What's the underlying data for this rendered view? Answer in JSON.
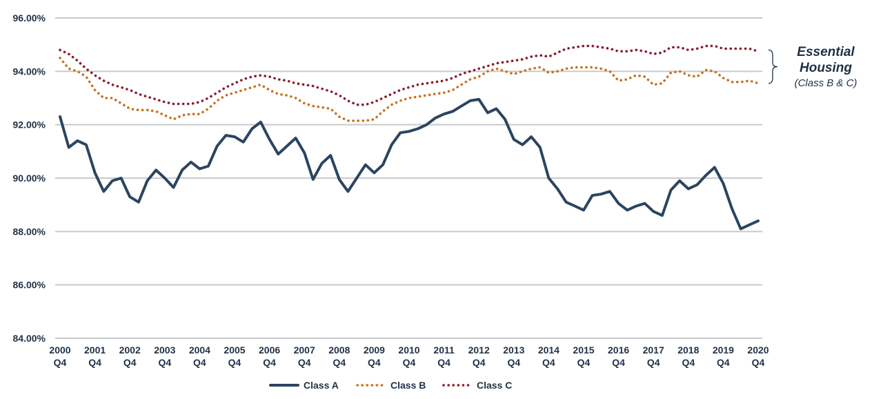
{
  "chart_data": {
    "type": "line",
    "title": "",
    "xlabel": "",
    "ylabel": "",
    "ylim": [
      84,
      96
    ],
    "yticks": [
      "96.00%",
      "94.00%",
      "92.00%",
      "90.00%",
      "88.00%",
      "86.00%",
      "84.00%"
    ],
    "ytick_values": [
      96,
      94,
      92,
      90,
      88,
      86,
      84
    ],
    "xticks": [
      {
        "year": "2000",
        "q": "Q4"
      },
      {
        "year": "2001",
        "q": "Q4"
      },
      {
        "year": "2002",
        "q": "Q4"
      },
      {
        "year": "2003",
        "q": "Q4"
      },
      {
        "year": "2004",
        "q": "Q4"
      },
      {
        "year": "2005",
        "q": "Q4"
      },
      {
        "year": "2006",
        "q": "Q4"
      },
      {
        "year": "2007",
        "q": "Q4"
      },
      {
        "year": "2008",
        "q": "Q4"
      },
      {
        "year": "2009",
        "q": "Q4"
      },
      {
        "year": "2010",
        "q": "Q4"
      },
      {
        "year": "2011",
        "q": "Q4"
      },
      {
        "year": "2012",
        "q": "Q4"
      },
      {
        "year": "2013",
        "q": "Q4"
      },
      {
        "year": "2014",
        "q": "Q4"
      },
      {
        "year": "2015",
        "q": "Q4"
      },
      {
        "year": "2016",
        "q": "Q4"
      },
      {
        "year": "2017",
        "q": "Q4"
      },
      {
        "year": "2018",
        "q": "Q4"
      },
      {
        "year": "2019",
        "q": "Q4"
      },
      {
        "year": "2020",
        "q": "Q4"
      }
    ],
    "xrange": [
      2000,
      2020
    ],
    "grid": true,
    "legend_position": "bottom-center",
    "series": [
      {
        "name": "Class A",
        "style": "solid",
        "color": "#2b4560",
        "x": [
          2000,
          2000.25,
          2000.5,
          2000.75,
          2001,
          2001.25,
          2001.5,
          2001.75,
          2002,
          2002.25,
          2002.5,
          2002.75,
          2003,
          2003.25,
          2003.5,
          2003.75,
          2004,
          2004.25,
          2004.5,
          2004.75,
          2005,
          2005.25,
          2005.5,
          2005.75,
          2006,
          2006.25,
          2006.5,
          2006.75,
          2007,
          2007.25,
          2007.5,
          2007.75,
          2008,
          2008.25,
          2008.5,
          2008.75,
          2009,
          2009.25,
          2009.5,
          2009.75,
          2010,
          2010.25,
          2010.5,
          2010.75,
          2011,
          2011.25,
          2011.5,
          2011.75,
          2012,
          2012.25,
          2012.5,
          2012.75,
          2013,
          2013.25,
          2013.5,
          2013.75,
          2014,
          2014.25,
          2014.5,
          2014.75,
          2015,
          2015.25,
          2015.5,
          2015.75,
          2016,
          2016.25,
          2016.5,
          2016.75,
          2017,
          2017.25,
          2017.5,
          2017.75,
          2018,
          2018.25,
          2018.5,
          2018.75,
          2019,
          2019.25,
          2019.5,
          2019.75,
          2020
        ],
        "values": [
          92.3,
          91.15,
          91.4,
          91.25,
          90.2,
          89.5,
          89.9,
          90.0,
          89.3,
          89.1,
          89.9,
          90.3,
          90.0,
          89.65,
          90.3,
          90.6,
          90.35,
          90.45,
          91.2,
          91.6,
          91.55,
          91.35,
          91.85,
          92.1,
          91.45,
          90.9,
          91.2,
          91.5,
          90.95,
          89.95,
          90.55,
          90.85,
          89.95,
          89.5,
          90.0,
          90.5,
          90.2,
          90.5,
          91.25,
          91.7,
          91.75,
          91.85,
          92.0,
          92.25,
          92.4,
          92.5,
          92.7,
          92.9,
          92.95,
          92.45,
          92.6,
          92.2,
          91.45,
          91.25,
          91.55,
          91.15,
          90.0,
          89.6,
          89.1,
          88.95,
          88.8,
          89.35,
          89.4,
          89.5,
          89.05,
          88.8,
          88.95,
          89.05,
          88.75,
          88.6,
          89.55,
          89.9,
          89.6,
          89.75,
          90.1,
          90.4,
          89.8,
          88.85,
          88.1,
          88.25,
          88.4
        ]
      },
      {
        "name": "Class B",
        "style": "dotted",
        "color": "#c8701d",
        "x": [
          2000,
          2000.25,
          2000.5,
          2000.75,
          2001,
          2001.25,
          2001.5,
          2001.75,
          2002,
          2002.25,
          2002.5,
          2002.75,
          2003,
          2003.25,
          2003.5,
          2003.75,
          2004,
          2004.25,
          2004.5,
          2004.75,
          2005,
          2005.25,
          2005.5,
          2005.75,
          2006,
          2006.25,
          2006.5,
          2006.75,
          2007,
          2007.25,
          2007.5,
          2007.75,
          2008,
          2008.25,
          2008.5,
          2008.75,
          2009,
          2009.25,
          2009.5,
          2009.75,
          2010,
          2010.25,
          2010.5,
          2010.75,
          2011,
          2011.25,
          2011.5,
          2011.75,
          2012,
          2012.25,
          2012.5,
          2012.75,
          2013,
          2013.25,
          2013.5,
          2013.75,
          2014,
          2014.25,
          2014.5,
          2014.75,
          2015,
          2015.25,
          2015.5,
          2015.75,
          2016,
          2016.25,
          2016.5,
          2016.75,
          2017,
          2017.25,
          2017.5,
          2017.75,
          2018,
          2018.25,
          2018.5,
          2018.75,
          2019,
          2019.25,
          2019.5,
          2019.75,
          2020
        ],
        "values": [
          94.5,
          94.1,
          94.0,
          93.8,
          93.3,
          93.0,
          93.0,
          92.8,
          92.6,
          92.55,
          92.55,
          92.5,
          92.35,
          92.2,
          92.35,
          92.4,
          92.4,
          92.6,
          92.9,
          93.1,
          93.2,
          93.3,
          93.4,
          93.5,
          93.3,
          93.15,
          93.1,
          93.0,
          92.8,
          92.7,
          92.65,
          92.6,
          92.3,
          92.15,
          92.15,
          92.15,
          92.2,
          92.5,
          92.75,
          92.9,
          93.0,
          93.05,
          93.1,
          93.15,
          93.2,
          93.3,
          93.5,
          93.7,
          93.8,
          94.0,
          94.1,
          94.0,
          93.9,
          94.0,
          94.1,
          94.15,
          93.95,
          94.0,
          94.1,
          94.15,
          94.15,
          94.15,
          94.1,
          94.0,
          93.65,
          93.7,
          93.85,
          93.8,
          93.5,
          93.55,
          93.95,
          94.0,
          93.85,
          93.8,
          94.05,
          94.0,
          93.75,
          93.6,
          93.6,
          93.65,
          93.55
        ]
      },
      {
        "name": "Class C",
        "style": "dotted",
        "color": "#8b1a2b",
        "x": [
          2000,
          2000.25,
          2000.5,
          2000.75,
          2001,
          2001.25,
          2001.5,
          2001.75,
          2002,
          2002.25,
          2002.5,
          2002.75,
          2003,
          2003.25,
          2003.5,
          2003.75,
          2004,
          2004.25,
          2004.5,
          2004.75,
          2005,
          2005.25,
          2005.5,
          2005.75,
          2006,
          2006.25,
          2006.5,
          2006.75,
          2007,
          2007.25,
          2007.5,
          2007.75,
          2008,
          2008.25,
          2008.5,
          2008.75,
          2009,
          2009.25,
          2009.5,
          2009.75,
          2010,
          2010.25,
          2010.5,
          2010.75,
          2011,
          2011.25,
          2011.5,
          2011.75,
          2012,
          2012.25,
          2012.5,
          2012.75,
          2013,
          2013.25,
          2013.5,
          2013.75,
          2014,
          2014.25,
          2014.5,
          2014.75,
          2015,
          2015.25,
          2015.5,
          2015.75,
          2016,
          2016.25,
          2016.5,
          2016.75,
          2017,
          2017.25,
          2017.5,
          2017.75,
          2018,
          2018.25,
          2018.5,
          2018.75,
          2019,
          2019.25,
          2019.5,
          2019.75,
          2020
        ],
        "values": [
          94.8,
          94.65,
          94.4,
          94.1,
          93.85,
          93.65,
          93.5,
          93.4,
          93.3,
          93.15,
          93.05,
          92.95,
          92.85,
          92.78,
          92.78,
          92.78,
          92.85,
          93.0,
          93.2,
          93.4,
          93.55,
          93.7,
          93.8,
          93.85,
          93.8,
          93.7,
          93.65,
          93.55,
          93.5,
          93.45,
          93.35,
          93.25,
          93.1,
          92.9,
          92.75,
          92.75,
          92.85,
          93.0,
          93.15,
          93.3,
          93.4,
          93.5,
          93.55,
          93.6,
          93.65,
          93.75,
          93.9,
          94.0,
          94.1,
          94.2,
          94.3,
          94.35,
          94.4,
          94.45,
          94.55,
          94.6,
          94.55,
          94.7,
          94.85,
          94.9,
          94.95,
          94.95,
          94.9,
          94.85,
          94.75,
          94.75,
          94.8,
          94.75,
          94.65,
          94.7,
          94.9,
          94.9,
          94.8,
          94.85,
          94.95,
          94.95,
          94.85,
          94.85,
          94.85,
          94.85,
          94.75
        ]
      }
    ],
    "annotation": {
      "title_lines": [
        "Essential",
        "Housing"
      ],
      "subtitle": "(Class B & C)",
      "bracket_from": 93.55,
      "bracket_to": 94.8
    }
  }
}
